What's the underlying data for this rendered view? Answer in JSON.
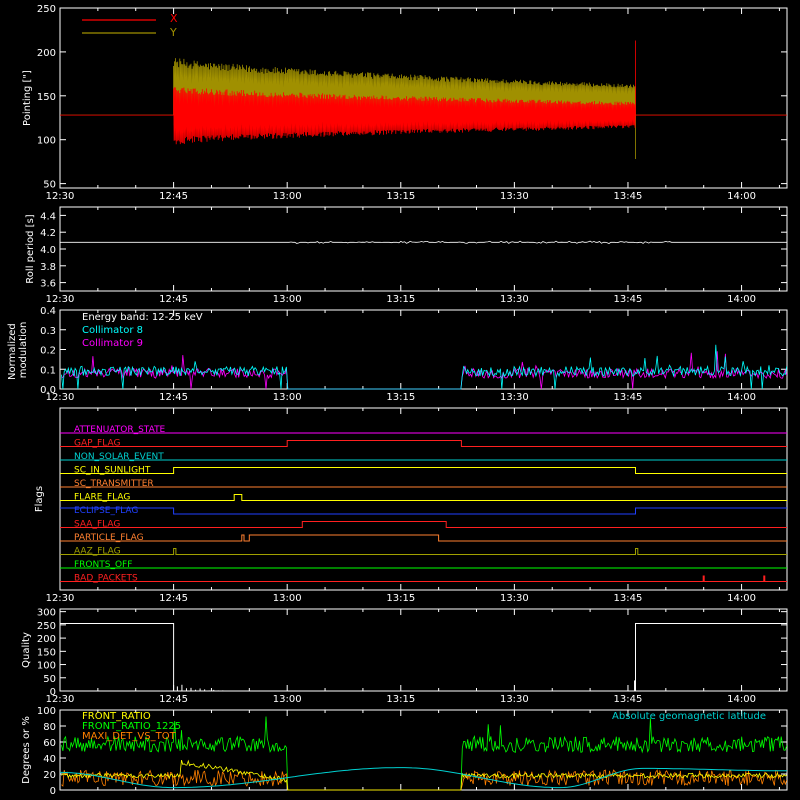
{
  "time_axis": {
    "start": "12:30",
    "end": "14:06",
    "tick_labels": [
      "12:30",
      "12:45",
      "13:00",
      "13:15",
      "13:30",
      "13:45",
      "14:00"
    ]
  },
  "colors": {
    "background": "#000000",
    "axes": "#ffffff",
    "pointing_x": "#ff0000",
    "pointing_y": "#a09000",
    "collimator_8": "#00ffff",
    "collimator_9": "#ff00ff",
    "front_ratio": "#ffff00",
    "front_ratio_1225": "#00ff00",
    "maxi_det": "#ff8000",
    "geomagnetic": "#00d0d0"
  },
  "chart_data": [
    {
      "type": "line",
      "id": "pointing",
      "ylabel": "Pointing [\"]",
      "ylim": [
        45,
        250
      ],
      "yticks": [
        50,
        100,
        150,
        200,
        250
      ],
      "legend": "top-left",
      "series": [
        {
          "name": "X",
          "color": "#ff0000",
          "active": [
            "12:45",
            "13:46"
          ],
          "baseline": 128,
          "center": 128,
          "initial_amplitude": 70,
          "final_amplitude": 30,
          "spike_end": 213
        },
        {
          "name": "Y",
          "color": "#a09000",
          "active": [
            "12:45",
            "13:46"
          ],
          "baseline": 128,
          "center": 150,
          "initial_amplitude": 90,
          "final_amplitude": 35,
          "spike_end": 78
        }
      ]
    },
    {
      "type": "line",
      "id": "roll-period",
      "ylabel": "Roll period [s]",
      "ylim": [
        3.5,
        4.5
      ],
      "yticks": [
        3.6,
        3.8,
        4.0,
        4.2,
        4.4
      ],
      "series": [
        {
          "color": "#ffffff",
          "value": 4.08
        }
      ]
    },
    {
      "type": "line",
      "id": "modulation",
      "ylabel": "Normalized modulation",
      "ylim": [
        0,
        0.4
      ],
      "yticks": [
        0.0,
        0.1,
        0.2,
        0.3,
        0.4
      ],
      "legend": "top-left",
      "annotation": "Energy band: 12-25 keV",
      "gap": [
        "13:00",
        "13:23"
      ],
      "series": [
        {
          "name": "Collimator 8",
          "color": "#00ffff",
          "baseline": 0.09
        },
        {
          "name": "Collimator 9",
          "color": "#ff00ff",
          "baseline": 0.08
        }
      ]
    },
    {
      "type": "line",
      "id": "flags",
      "ylabel": "Flags",
      "series": [
        {
          "name": "ATTENUATOR_STATE",
          "color": "#ff00ff",
          "high": []
        },
        {
          "name": "GAP_FLAG",
          "color": "#ff2020",
          "high": [
            [
              "13:00",
              "13:23"
            ]
          ]
        },
        {
          "name": "NON_SOLAR_EVENT",
          "color": "#00d0d0",
          "high": []
        },
        {
          "name": "SC_IN_SUNLIGHT",
          "color": "#ffff00",
          "high": [
            [
              "12:45",
              "13:46"
            ]
          ]
        },
        {
          "name": "SC_TRANSMITTER",
          "color": "#ff8030",
          "high": []
        },
        {
          "name": "FLARE_FLAG",
          "color": "#ffff00",
          "high": [
            [
              "12:53",
              "12:54"
            ]
          ]
        },
        {
          "name": "ECLIPSE_FLAG",
          "color": "#2040ff",
          "high": [
            [
              "12:30",
              "12:45"
            ],
            [
              "13:46",
              "14:06"
            ]
          ]
        },
        {
          "name": "SAA_FLAG",
          "color": "#ff2020",
          "high": [
            [
              "13:02",
              "13:21"
            ]
          ]
        },
        {
          "name": "PARTICLE_FLAG",
          "color": "#ff8030",
          "high": [
            [
              "12:54",
              "12:54"
            ],
            [
              "12:55",
              "13:20"
            ]
          ]
        },
        {
          "name": "AAZ_FLAG",
          "color": "#a0a000",
          "high": [
            [
              "12:45",
              "12:45"
            ],
            [
              "13:46",
              "13:46"
            ]
          ]
        },
        {
          "name": "FRONTS_OFF",
          "color": "#00ff00",
          "high": []
        },
        {
          "name": "BAD_PACKETS",
          "color": "#ff2020",
          "spikes": [
            "13:55",
            "14:03"
          ]
        }
      ]
    },
    {
      "type": "line",
      "id": "quality",
      "ylabel": "Quality",
      "ylim": [
        0,
        310
      ],
      "yticks": [
        0,
        50,
        100,
        150,
        200,
        250,
        300
      ],
      "series": [
        {
          "color": "#ffffff",
          "high_value": 255,
          "high": [
            [
              "12:30",
              "12:45"
            ],
            [
              "13:46",
              "14:06"
            ]
          ]
        }
      ]
    },
    {
      "type": "line",
      "id": "ratios",
      "ylabel": "Degrees or %",
      "ylim": [
        0,
        100
      ],
      "yticks": [
        0,
        20,
        40,
        60,
        80,
        100
      ],
      "legend": "top-left",
      "gap": [
        "13:00",
        "13:23"
      ],
      "series": [
        {
          "name": "FRONT_RATIO",
          "color": "#ffff00"
        },
        {
          "name": "FRONT_RATIO_1225",
          "color": "#00ff00",
          "baseline": 57
        },
        {
          "name": "MAXI_DET_VS_TOT",
          "color": "#ff8000",
          "baseline": 15
        },
        {
          "name": "Absolute geomagnetic latitude",
          "color": "#00d0d0",
          "peaks": [
            [
              "13:15",
              28
            ],
            [
              "13:47",
              27
            ]
          ],
          "troughs": [
            [
              "12:45",
              3
            ],
            [
              "13:36",
              3
            ]
          ]
        }
      ]
    }
  ]
}
